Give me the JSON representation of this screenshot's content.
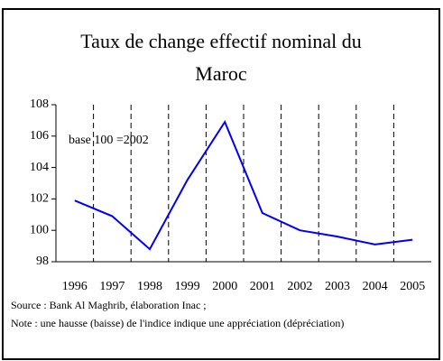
{
  "chart_data": {
    "type": "line",
    "title": [
      "Taux de change effectif nominal du",
      "Maroc"
    ],
    "annotation": "base 100 =2002",
    "categories": [
      "1996",
      "1997",
      "1998",
      "1999",
      "2000",
      "2001",
      "2002",
      "2003",
      "2004",
      "2005"
    ],
    "series": [
      {
        "name": "Taux de change effectif nominal",
        "color": "#0000ee",
        "values": [
          101.9,
          100.9,
          98.8,
          103.2,
          106.9,
          101.1,
          100.0,
          99.6,
          99.1,
          99.4
        ]
      }
    ],
    "ylim": [
      98,
      108
    ],
    "yticks": [
      98,
      100,
      102,
      104,
      106,
      108
    ],
    "source": "Source : Bank Al Maghrib, élaboration Inac ;",
    "note": "Note : une hausse (baisse) de l'indice indique une appréciation (dépréciation)"
  }
}
